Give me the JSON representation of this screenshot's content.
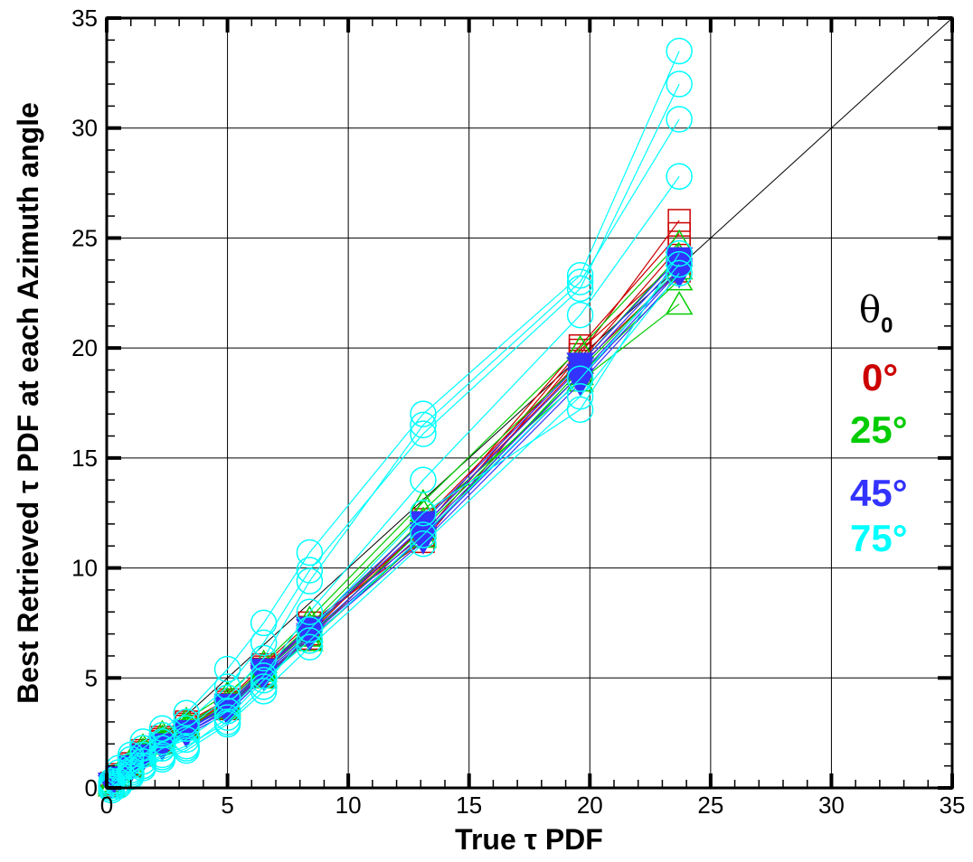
{
  "chart_data": {
    "type": "scatter",
    "title": "",
    "xlabel": "True τ PDF",
    "ylabel": "Best Retrieved τ PDF at each Azimuth angle",
    "xlim": [
      0,
      35
    ],
    "ylim": [
      0,
      35
    ],
    "xticks": [
      "0",
      "5",
      "10",
      "15",
      "20",
      "25",
      "30",
      "35"
    ],
    "yticks": [
      "0",
      "5",
      "10",
      "15",
      "20",
      "25",
      "30",
      "35"
    ],
    "grid": true,
    "reference_line": "y = x",
    "legend": {
      "placement": "right",
      "title": "θ",
      "title_subscript": "0",
      "entries": [
        {
          "label": "0°",
          "color": "#cc0000",
          "marker": "square"
        },
        {
          "label": "25°",
          "color": "#00cc00",
          "marker": "triangle"
        },
        {
          "label": "45°",
          "color": "#3333ff",
          "marker": "triangle-down"
        },
        {
          "label": "75°",
          "color": "#00ffff",
          "marker": "circle"
        }
      ]
    },
    "x": [
      0.2,
      0.5,
      1.0,
      1.5,
      2.3,
      3.3,
      5.0,
      6.5,
      8.4,
      13.1,
      19.6,
      23.7
    ],
    "series": [
      {
        "name": "0°",
        "color": "#cc0000",
        "marker": "square",
        "lines": [
          [
            0.2,
            0.6,
            1.1,
            1.7,
            2.3,
            3.0,
            4.0,
            5.6,
            7.5,
            11.2,
            19.7,
            25.8
          ],
          [
            0.2,
            0.5,
            1.0,
            1.5,
            2.2,
            2.9,
            3.8,
            5.4,
            7.2,
            11.8,
            20.1,
            25.2
          ],
          [
            0.1,
            0.5,
            1.0,
            1.5,
            2.1,
            2.8,
            3.7,
            5.2,
            7.0,
            12.2,
            19.4,
            24.6
          ],
          [
            0.2,
            0.6,
            1.1,
            1.6,
            2.2,
            2.9,
            3.9,
            5.5,
            7.3,
            11.5,
            19.9,
            24.0
          ],
          [
            0.1,
            0.5,
            1.0,
            1.5,
            2.1,
            2.8,
            3.6,
            5.1,
            6.8,
            11.9,
            19.2,
            23.5
          ]
        ]
      },
      {
        "name": "25°",
        "color": "#00cc00",
        "marker": "triangle",
        "lines": [
          [
            0.3,
            0.7,
            1.3,
            1.9,
            2.5,
            3.1,
            4.3,
            5.7,
            7.7,
            13.0,
            20.0,
            24.8
          ],
          [
            0.2,
            0.6,
            1.2,
            1.7,
            2.3,
            2.9,
            4.0,
            5.4,
            7.4,
            12.6,
            19.3,
            24.2
          ],
          [
            0.1,
            0.5,
            1.0,
            1.5,
            2.1,
            2.7,
            3.7,
            5.1,
            6.9,
            11.8,
            18.8,
            23.1
          ],
          [
            0.2,
            0.6,
            1.1,
            1.6,
            2.2,
            2.8,
            3.8,
            5.3,
            7.1,
            12.2,
            18.5,
            22.0
          ],
          [
            0.1,
            0.5,
            1.0,
            1.5,
            2.0,
            2.7,
            3.6,
            5.0,
            6.7,
            11.4,
            19.0,
            23.6
          ]
        ]
      },
      {
        "name": "45°",
        "color": "#3333ff",
        "marker": "triangle-down",
        "lines": [
          [
            0.1,
            0.4,
            0.8,
            1.3,
            1.8,
            2.4,
            3.4,
            5.0,
            6.8,
            11.2,
            18.4,
            23.3
          ],
          [
            0.2,
            0.5,
            0.9,
            1.4,
            1.9,
            2.5,
            3.6,
            5.2,
            7.0,
            11.6,
            18.8,
            23.6
          ],
          [
            0.2,
            0.5,
            1.0,
            1.5,
            2.0,
            2.6,
            3.7,
            5.3,
            7.2,
            11.9,
            19.1,
            23.9
          ],
          [
            0.1,
            0.5,
            0.9,
            1.4,
            2.0,
            2.6,
            3.8,
            5.4,
            7.3,
            12.1,
            19.3,
            24.1
          ],
          [
            0.2,
            0.4,
            0.9,
            1.4,
            1.9,
            2.5,
            3.5,
            5.1,
            6.9,
            11.4,
            18.6,
            23.5
          ]
        ]
      },
      {
        "name": "75°",
        "color": "#00ffff",
        "marker": "circle",
        "lines": [
          [
            0.3,
            0.9,
            1.5,
            2.1,
            2.7,
            3.4,
            5.4,
            7.5,
            10.7,
            17.0,
            23.3,
            33.5
          ],
          [
            0.2,
            0.7,
            1.3,
            1.8,
            2.4,
            3.0,
            4.6,
            6.6,
            9.9,
            16.1,
            22.7,
            32.0
          ],
          [
            0.1,
            0.5,
            1.0,
            1.5,
            2.1,
            2.7,
            4.1,
            5.9,
            9.4,
            16.5,
            23.0,
            30.4
          ],
          [
            0.0,
            0.3,
            0.8,
            1.2,
            1.8,
            2.2,
            3.5,
            5.1,
            8.0,
            14.0,
            21.5,
            27.8
          ],
          [
            0.0,
            0.2,
            0.7,
            1.0,
            1.5,
            1.9,
            3.0,
            4.6,
            7.2,
            12.5,
            17.2,
            24.3
          ],
          [
            -0.1,
            0.1,
            0.5,
            0.9,
            1.3,
            1.7,
            2.9,
            4.4,
            6.4,
            11.1,
            17.8,
            23.4
          ],
          [
            0.0,
            0.2,
            0.6,
            1.0,
            1.4,
            1.8,
            3.2,
            4.9,
            6.7,
            11.5,
            18.6,
            23.8
          ]
        ]
      }
    ]
  }
}
